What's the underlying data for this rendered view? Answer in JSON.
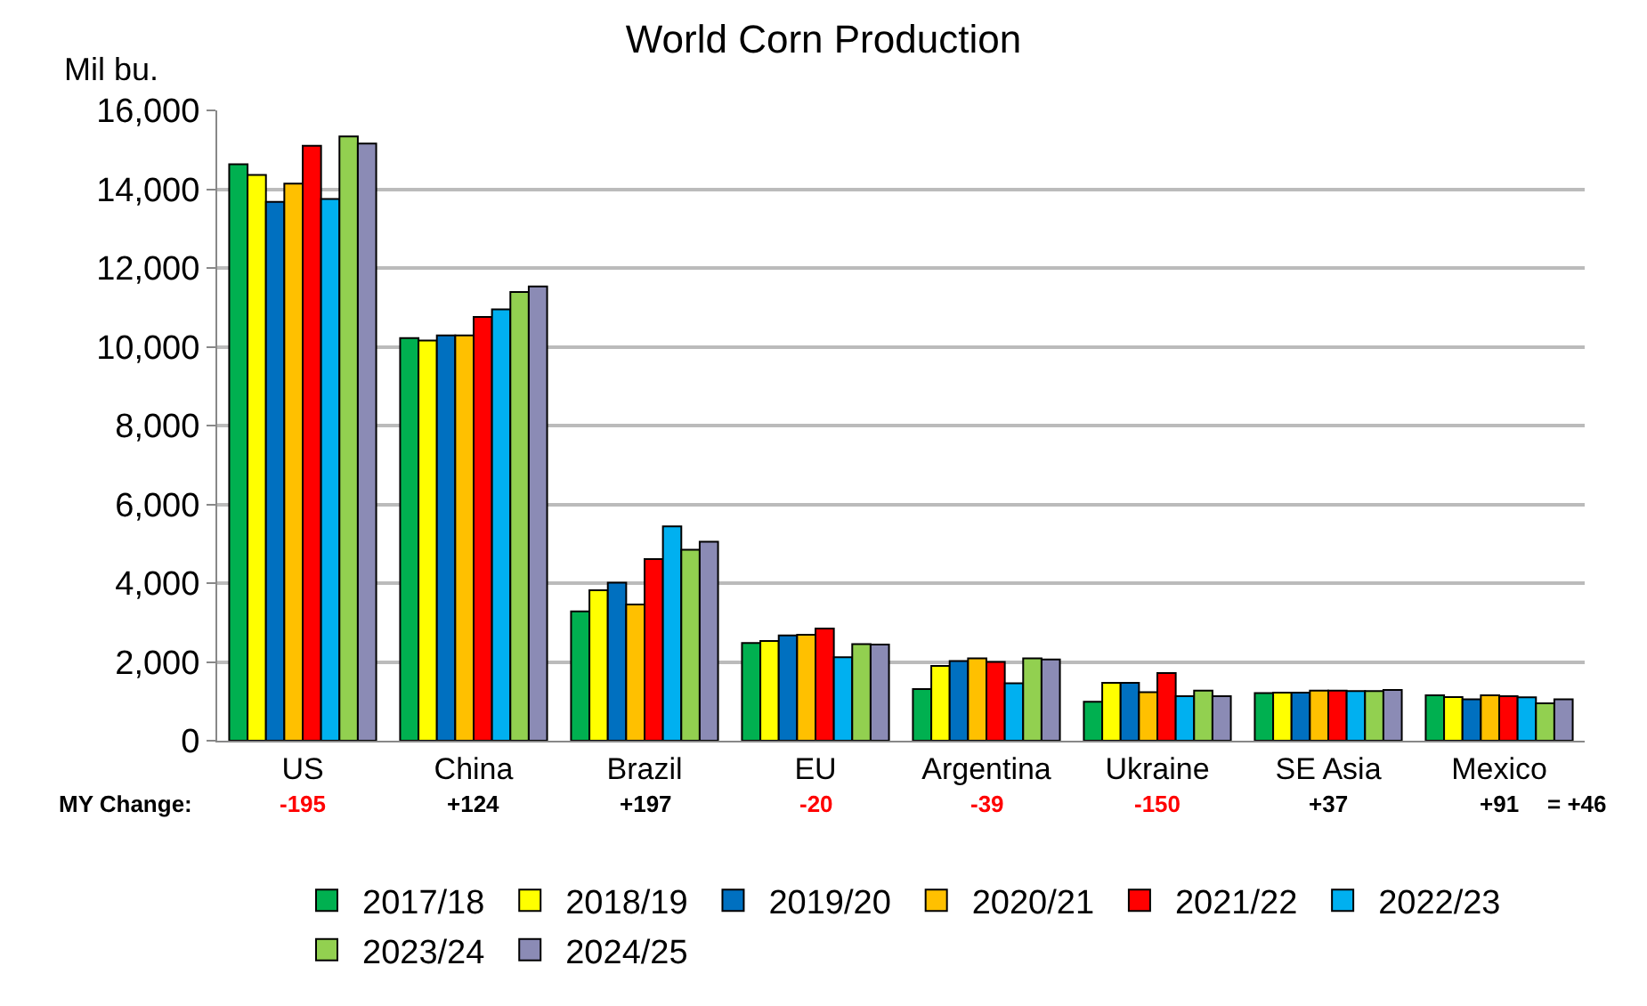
{
  "chart_data": {
    "type": "bar",
    "title": "World Corn Production",
    "ylabel": "Mil bu.",
    "categories": [
      "US",
      "China",
      "Brazil",
      "EU",
      "Argentina",
      "Ukraine",
      "SE Asia",
      "Mexico"
    ],
    "series": [
      {
        "name": "2017/18",
        "color": "#00b050",
        "values": [
          14630,
          10220,
          3280,
          2480,
          1310,
          990,
          1210,
          1150
        ]
      },
      {
        "name": "2018/19",
        "color": "#ffff00",
        "values": [
          14360,
          10160,
          3820,
          2530,
          1900,
          1470,
          1220,
          1110
        ]
      },
      {
        "name": "2019/20",
        "color": "#0070c0",
        "values": [
          13680,
          10290,
          4010,
          2670,
          2020,
          1470,
          1220,
          1050
        ]
      },
      {
        "name": "2020/21",
        "color": "#ffc000",
        "values": [
          14140,
          10290,
          3460,
          2690,
          2090,
          1230,
          1270,
          1150
        ]
      },
      {
        "name": "2021/22",
        "color": "#ff0000",
        "values": [
          15100,
          10760,
          4610,
          2850,
          2000,
          1720,
          1270,
          1130
        ]
      },
      {
        "name": "2022/23",
        "color": "#00b0f0",
        "values": [
          13750,
          10950,
          5440,
          2120,
          1460,
          1130,
          1260,
          1100
        ]
      },
      {
        "name": "2023/24",
        "color": "#92d050",
        "values": [
          15340,
          11390,
          4850,
          2450,
          2090,
          1270,
          1260,
          950
        ]
      },
      {
        "name": "2024/25",
        "color": "#8b8bb5",
        "values": [
          15160,
          11530,
          5050,
          2440,
          2060,
          1130,
          1290,
          1050
        ]
      }
    ],
    "ylim": [
      0,
      16000
    ],
    "yticks": [
      {
        "value": 0,
        "label": "0"
      },
      {
        "value": 2000,
        "label": "2,000"
      },
      {
        "value": 4000,
        "label": "4,000"
      },
      {
        "value": 6000,
        "label": "6,000"
      },
      {
        "value": 8000,
        "label": "8,000"
      },
      {
        "value": 10000,
        "label": "10,000"
      },
      {
        "value": 12000,
        "label": "12,000"
      },
      {
        "value": 14000,
        "label": "14,000"
      },
      {
        "value": 16000,
        "label": "16,000"
      }
    ],
    "grid": "y",
    "legend": "bottom",
    "annotations": [
      "MY Change:",
      "-195",
      "+124",
      "+197",
      "-20",
      "-39",
      "-150",
      "+37",
      "+91",
      "= +46"
    ]
  }
}
